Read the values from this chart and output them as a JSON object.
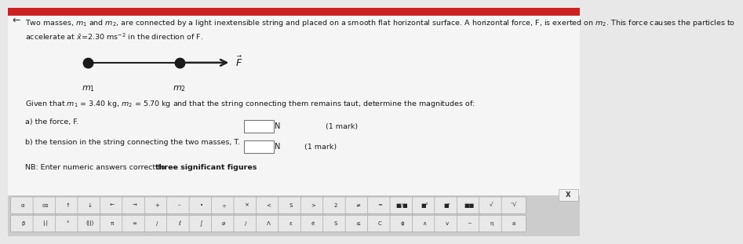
{
  "bg_color": "#e8e8e8",
  "panel_bg": "#f5f5f5",
  "text_color": "#1a1a1a",
  "line_color": "#222222",
  "dot_color": "#1a1a1a",
  "title_line1": "Two masses, $m_1$ and $m_2$, are connected by a light inextensible string and placed on a smooth flat horizontal surface. A horizontal force, F, is exerted on $m_2$. This force causes the particles to",
  "title_line2": "accelerate at $\\bar{x}$=2.30 ms$^{-2}$ in the direction of F.",
  "m1_label": "$m_1$",
  "m2_label": "$m_2$",
  "F_label": "$\\vec{F}$",
  "given_text": "Given that $m_1$ = 3.40 kg, $m_2$ = 5.70 kg and that the string connecting them remains taut, determine the magnitudes of:",
  "part_a": "a) the force, F.",
  "part_b": "b) the tension in the string connecting the two masses, T.",
  "mark": "(1 mark)",
  "nb_plain": "NB: Enter numeric answers correct to ",
  "nb_bold": "three significant figures",
  "nb_end": ".",
  "keyboard_row1": [
    "α",
    "cα",
    "↑",
    "↓",
    "←",
    "→",
    "+",
    "–",
    "•",
    "÷",
    "×",
    "<",
    "S",
    ">",
    "2",
    "≠",
    "=",
    "■/■",
    "■²",
    "■'",
    "■■",
    "√",
    "ⁿ√"
  ],
  "keyboard_row2": [
    "β",
    "|.|",
    "°",
    "(||)",
    "π",
    "∞",
    "/",
    "ℓ",
    "∫",
    "ø",
    "/",
    "Λ",
    "ε",
    "ė",
    "S",
    "≤",
    "C",
    "ϕ",
    "∧",
    "v",
    "~",
    "η",
    "a"
  ]
}
